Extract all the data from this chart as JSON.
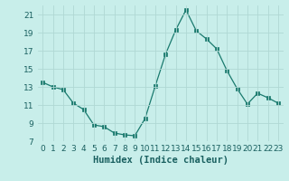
{
  "x": [
    0,
    1,
    2,
    3,
    4,
    5,
    6,
    7,
    8,
    9,
    10,
    11,
    12,
    13,
    14,
    15,
    16,
    17,
    18,
    19,
    20,
    21,
    22,
    23
  ],
  "y": [
    13.5,
    13.0,
    12.7,
    11.2,
    10.5,
    8.8,
    8.6,
    7.9,
    7.7,
    7.6,
    9.5,
    13.1,
    16.6,
    19.3,
    21.5,
    19.2,
    18.3,
    17.2,
    14.8,
    12.8,
    11.1,
    12.3,
    11.8,
    11.2
  ],
  "line_color": "#1a7a6e",
  "marker_color": "#1a7a6e",
  "bg_color": "#c8eeea",
  "grid_color": "#b0d8d4",
  "xlabel": "Humidex (Indice chaleur)",
  "ylim": [
    7,
    22
  ],
  "xlim": [
    -0.5,
    23.5
  ],
  "yticks": [
    7,
    9,
    11,
    13,
    15,
    17,
    19,
    21
  ],
  "xticks": [
    0,
    1,
    2,
    3,
    4,
    5,
    6,
    7,
    8,
    9,
    10,
    11,
    12,
    13,
    14,
    15,
    16,
    17,
    18,
    19,
    20,
    21,
    22,
    23
  ],
  "xlabel_fontsize": 7.5,
  "tick_fontsize": 6.5
}
